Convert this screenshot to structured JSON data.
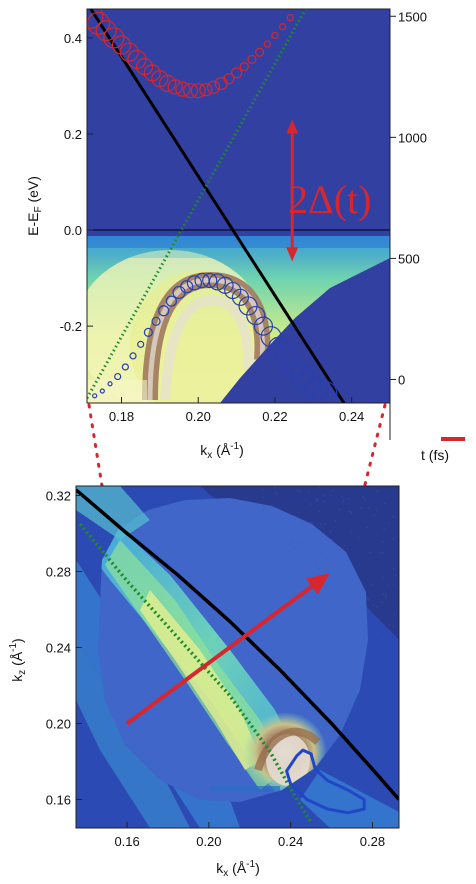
{
  "chart_data": [
    {
      "type": "heatmap",
      "panel": "top",
      "xlabel": "k",
      "xlabel_sub": "x",
      "xlabel_unit": " (Å",
      "xlabel_unit_sup": "-1",
      "xlabel_close": ")",
      "ylabel": "E-E",
      "ylabel_sub": "F",
      "ylabel_unit": " (eV)",
      "y2label": "t (fs)",
      "xlim": [
        0.171,
        0.25
      ],
      "ylim": [
        -0.36,
        0.46
      ],
      "y2lim": [
        -250,
        1530
      ],
      "x_ticks": [
        0.18,
        0.2,
        0.22,
        0.24
      ],
      "x_tick_labels": [
        "0.18",
        "0.20",
        "0.22",
        "0.24"
      ],
      "y_ticks": [
        0.4,
        0.2,
        0.0,
        -0.2
      ],
      "y_tick_labels": [
        "0.4",
        "0.2",
        "0.0",
        "-0.2"
      ],
      "y2_ticks": [
        1500,
        1000,
        500,
        0
      ],
      "y2_tick_labels": [
        "1500",
        "1000",
        "500",
        "0"
      ],
      "fermi_level": 0.0,
      "series": [
        {
          "kind": "red-circles",
          "color": "#d8262e",
          "points": [
            [
              0.172,
              0.445
            ],
            [
              0.174,
              0.43
            ],
            [
              0.176,
              0.415
            ],
            [
              0.178,
              0.4
            ],
            [
              0.18,
              0.385
            ],
            [
              0.182,
              0.37
            ],
            [
              0.184,
              0.355
            ],
            [
              0.186,
              0.34
            ],
            [
              0.188,
              0.327
            ],
            [
              0.19,
              0.315
            ],
            [
              0.192,
              0.305
            ],
            [
              0.194,
              0.298
            ],
            [
              0.196,
              0.293
            ],
            [
              0.198,
              0.29
            ],
            [
              0.2,
              0.29
            ],
            [
              0.202,
              0.292
            ],
            [
              0.204,
              0.297
            ],
            [
              0.206,
              0.305
            ],
            [
              0.208,
              0.315
            ],
            [
              0.21,
              0.327
            ],
            [
              0.212,
              0.34
            ],
            [
              0.214,
              0.355
            ],
            [
              0.216,
              0.37
            ],
            [
              0.218,
              0.387
            ],
            [
              0.22,
              0.405
            ],
            [
              0.222,
              0.423
            ],
            [
              0.224,
              0.442
            ]
          ],
          "sizes": [
            12,
            11,
            10,
            10,
            9,
            9,
            9,
            8,
            8,
            8,
            8,
            7,
            7,
            7,
            7,
            6,
            6,
            6,
            5,
            5,
            4,
            4,
            4,
            3,
            3,
            3,
            3
          ]
        },
        {
          "kind": "blue-circles",
          "color": "#2a3fb0",
          "points": [
            [
              0.173,
              -0.345
            ],
            [
              0.175,
              -0.335
            ],
            [
              0.177,
              -0.32
            ],
            [
              0.179,
              -0.305
            ],
            [
              0.181,
              -0.285
            ],
            [
              0.183,
              -0.262
            ],
            [
              0.185,
              -0.238
            ],
            [
              0.187,
              -0.213
            ],
            [
              0.189,
              -0.19
            ],
            [
              0.191,
              -0.168
            ],
            [
              0.193,
              -0.148
            ],
            [
              0.195,
              -0.13
            ],
            [
              0.197,
              -0.118
            ],
            [
              0.199,
              -0.11
            ],
            [
              0.201,
              -0.105
            ],
            [
              0.203,
              -0.105
            ],
            [
              0.205,
              -0.108
            ],
            [
              0.207,
              -0.115
            ],
            [
              0.209,
              -0.126
            ],
            [
              0.211,
              -0.14
            ],
            [
              0.213,
              -0.158
            ],
            [
              0.215,
              -0.178
            ],
            [
              0.217,
              -0.2
            ],
            [
              0.219,
              -0.222
            ],
            [
              0.221,
              -0.244
            ],
            [
              0.223,
              -0.265
            ],
            [
              0.225,
              -0.285
            ],
            [
              0.227,
              -0.302
            ],
            [
              0.229,
              -0.318
            ],
            [
              0.231,
              -0.33
            ],
            [
              0.233,
              -0.34
            ]
          ],
          "sizes": [
            2,
            2,
            2,
            3,
            3,
            3,
            3,
            4,
            4,
            5,
            5,
            6,
            6,
            7,
            7,
            7,
            8,
            8,
            8,
            8,
            9,
            9,
            9,
            10,
            10,
            10,
            10,
            11,
            11,
            11,
            12
          ]
        },
        {
          "kind": "black-line",
          "color": "#000000",
          "points": [
            [
              0.172,
              0.46
            ],
            [
              0.238,
              -0.36
            ]
          ]
        },
        {
          "kind": "green-dotted-line",
          "color": "#1f8a2e",
          "points": [
            [
              0.171,
              -0.35
            ],
            [
              0.228,
              0.46
            ]
          ]
        }
      ],
      "annotation": {
        "text": "2Δ(t)",
        "color": "#d8262e",
        "arrow_from_energy": 0.23,
        "arrow_to_energy": -0.065,
        "arrow_k": 0.2245
      }
    },
    {
      "type": "heatmap",
      "panel": "bottom",
      "xlabel": "k",
      "xlabel_sub": "x",
      "xlabel_unit": " (Å",
      "xlabel_unit_sup": "-1",
      "xlabel_close": ")",
      "ylabel": "k",
      "ylabel_sub": "z",
      "ylabel_unit": " (Å",
      "ylabel_unit_sup": "-1",
      "ylabel_close": ")",
      "xlim": [
        0.135,
        0.293
      ],
      "ylim": [
        0.145,
        0.325
      ],
      "x_ticks": [
        0.16,
        0.2,
        0.24,
        0.28
      ],
      "x_tick_labels": [
        "0.16",
        "0.20",
        "0.24",
        "0.28"
      ],
      "y_ticks": [
        0.32,
        0.28,
        0.24,
        0.2,
        0.16
      ],
      "y_tick_labels": [
        "0.32",
        "0.28",
        "0.24",
        "0.20",
        "0.16"
      ],
      "series": [
        {
          "kind": "black-line",
          "color": "#000000",
          "points": [
            [
              0.135,
              0.323
            ],
            [
              0.16,
              0.3
            ],
            [
              0.185,
              0.278
            ],
            [
              0.21,
              0.254
            ],
            [
              0.235,
              0.228
            ],
            [
              0.26,
              0.2
            ],
            [
              0.28,
              0.176
            ],
            [
              0.293,
              0.16
            ]
          ]
        },
        {
          "kind": "green-dotted-line",
          "color": "#1f8a2e",
          "points": [
            [
              0.137,
              0.305
            ],
            [
              0.16,
              0.275
            ],
            [
              0.185,
              0.245
            ],
            [
              0.21,
              0.215
            ],
            [
              0.23,
              0.185
            ],
            [
              0.243,
              0.16
            ],
            [
              0.25,
              0.148
            ]
          ]
        },
        {
          "kind": "blue-contour",
          "color": "#2147c8",
          "points": [
            [
              0.243,
              0.183
            ],
            [
              0.238,
              0.175
            ],
            [
              0.24,
              0.168
            ],
            [
              0.248,
              0.16
            ],
            [
              0.258,
              0.155
            ],
            [
              0.268,
              0.153
            ],
            [
              0.276,
              0.155
            ],
            [
              0.276,
              0.16
            ],
            [
              0.268,
              0.165
            ],
            [
              0.258,
              0.17
            ],
            [
              0.252,
              0.176
            ],
            [
              0.25,
              0.184
            ],
            [
              0.246,
              0.186
            ],
            [
              0.243,
              0.183
            ]
          ]
        }
      ],
      "arrow": {
        "from": [
          0.16,
          0.2
        ],
        "to": [
          0.259,
          0.279
        ],
        "color": "#d8262e"
      }
    }
  ]
}
